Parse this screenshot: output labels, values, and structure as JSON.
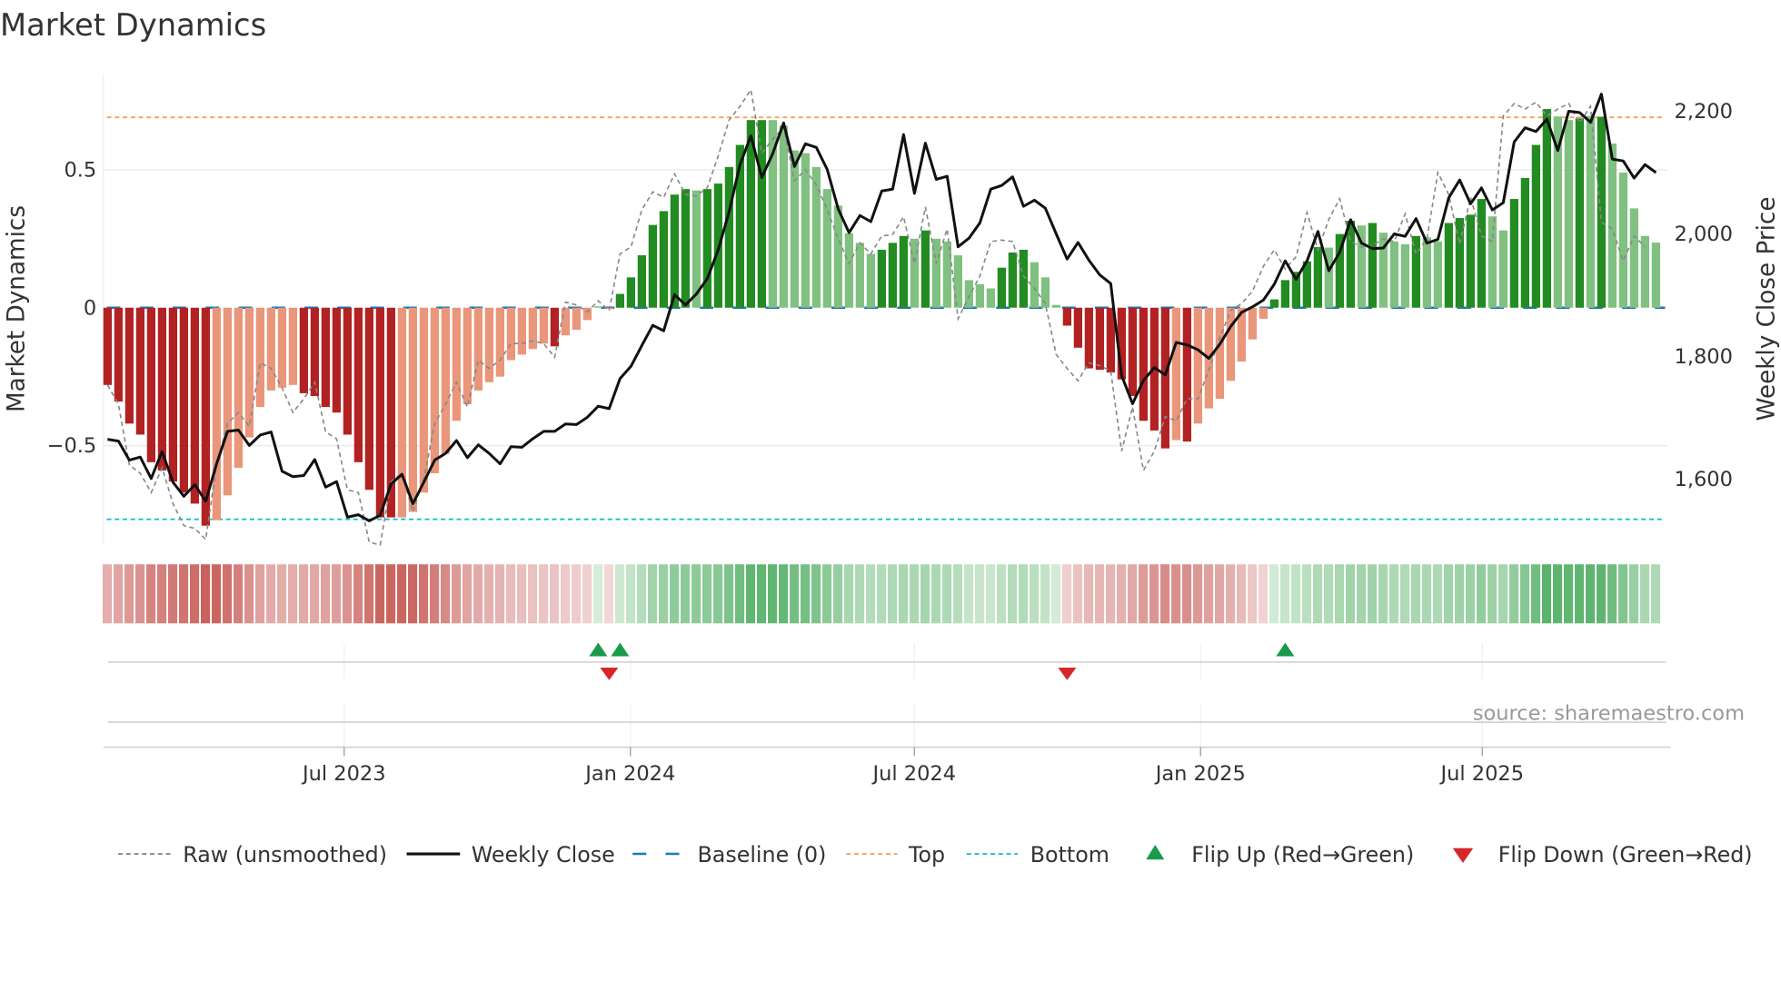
{
  "chart_data": {
    "type": "bar",
    "title": "Market Dynamics",
    "ylabel_left": "Market Dynamics",
    "ylabel_right": "Weekly Close Price",
    "source": "source: sharemaestro.com",
    "left_ticks": [
      {
        "value": 0.5,
        "label": "0.5"
      },
      {
        "value": 0,
        "label": "0"
      },
      {
        "value": -0.5,
        "label": "−0.5"
      }
    ],
    "right_ticks": [
      {
        "value": 2200,
        "label": "2,200"
      },
      {
        "value": 2000,
        "label": "2,000"
      },
      {
        "value": 1800,
        "label": "1,800"
      },
      {
        "value": 1600,
        "label": "1,600"
      }
    ],
    "x_ticks": [
      "Jul 2023",
      "Jan 2024",
      "Jul 2024",
      "Jan 2025",
      "Jul 2025"
    ],
    "ylim_left": [
      -0.8,
      0.8
    ],
    "top_level": 0.69,
    "bottom_level": -0.767,
    "baseline": 0,
    "grid": true,
    "legend_position": "bottom",
    "legend": [
      "Raw (unsmoothed)",
      "Weekly Close",
      "Baseline (0)",
      "Top",
      "Bottom",
      "Flip Up (Red→Green)",
      "Flip Down (Green→Red)"
    ],
    "colors": {
      "red_strong": "#b22222",
      "red_light": "#e9967a",
      "green_strong": "#228b22",
      "green_light": "#80c080",
      "raw": "#888888",
      "close": "#111111",
      "baseline": "#1f77b4",
      "top": "#f4a460",
      "bottom": "#17becf",
      "flip_up": "#1a9a4a",
      "flip_down": "#d62728"
    },
    "values": [
      -0.28,
      -0.34,
      -0.42,
      -0.46,
      -0.56,
      -0.59,
      -0.63,
      -0.67,
      -0.71,
      -0.79,
      -0.77,
      -0.68,
      -0.58,
      -0.47,
      -0.36,
      -0.3,
      -0.29,
      -0.28,
      -0.31,
      -0.32,
      -0.36,
      -0.38,
      -0.46,
      -0.56,
      -0.66,
      -0.76,
      -0.76,
      -0.76,
      -0.74,
      -0.67,
      -0.6,
      -0.53,
      -0.41,
      -0.35,
      -0.3,
      -0.27,
      -0.25,
      -0.19,
      -0.17,
      -0.15,
      -0.13,
      -0.14,
      -0.1,
      -0.08,
      -0.045,
      0.005,
      -0.005,
      0.05,
      0.11,
      0.19,
      0.3,
      0.35,
      0.41,
      0.43,
      0.425,
      0.43,
      0.45,
      0.51,
      0.59,
      0.68,
      0.68,
      0.68,
      0.66,
      0.57,
      0.56,
      0.51,
      0.43,
      0.37,
      0.27,
      0.235,
      0.195,
      0.21,
      0.235,
      0.26,
      0.25,
      0.28,
      0.25,
      0.24,
      0.19,
      0.1,
      0.085,
      0.07,
      0.145,
      0.2,
      0.21,
      0.165,
      0.11,
      0.01,
      -0.065,
      -0.145,
      -0.22,
      -0.225,
      -0.235,
      -0.26,
      -0.32,
      -0.41,
      -0.445,
      -0.51,
      -0.48,
      -0.485,
      -0.42,
      -0.365,
      -0.33,
      -0.265,
      -0.195,
      -0.115,
      -0.04,
      0.03,
      0.1,
      0.13,
      0.168,
      0.22,
      0.218,
      0.267,
      0.315,
      0.298,
      0.307,
      0.272,
      0.24,
      0.23,
      0.26,
      0.255,
      0.24,
      0.307,
      0.325,
      0.337,
      0.394,
      0.331,
      0.28,
      0.394,
      0.47,
      0.59,
      0.72,
      0.693,
      0.68,
      0.686,
      0.695,
      0.692,
      0.595,
      0.49,
      0.36,
      0.26,
      0.236
    ],
    "strong": [
      1,
      1,
      1,
      1,
      1,
      1,
      1,
      1,
      1,
      1,
      0,
      0,
      0,
      0,
      0,
      0,
      0,
      0,
      1,
      1,
      1,
      1,
      1,
      1,
      1,
      1,
      1,
      0,
      0,
      0,
      0,
      0,
      0,
      0,
      0,
      0,
      0,
      0,
      0,
      0,
      0,
      1,
      0,
      0,
      0,
      0,
      0,
      1,
      1,
      1,
      1,
      1,
      1,
      1,
      0,
      1,
      1,
      1,
      1,
      1,
      1,
      0,
      0,
      0,
      0,
      0,
      0,
      0,
      0,
      0,
      0,
      1,
      1,
      1,
      0,
      1,
      0,
      0,
      0,
      0,
      0,
      0,
      1,
      1,
      1,
      0,
      0,
      0,
      1,
      1,
      1,
      1,
      1,
      1,
      1,
      1,
      1,
      1,
      0,
      1,
      0,
      0,
      0,
      0,
      0,
      0,
      0,
      1,
      1,
      1,
      1,
      1,
      0,
      1,
      1,
      0,
      1,
      0,
      0,
      0,
      1,
      0,
      0,
      1,
      1,
      1,
      1,
      0,
      0,
      1,
      1,
      1,
      1,
      0,
      0,
      1,
      0,
      1,
      0,
      0,
      0,
      0,
      0
    ],
    "raw": [
      -0.28,
      -0.35,
      -0.57,
      -0.6,
      -0.67,
      -0.58,
      -0.71,
      -0.79,
      -0.8,
      -0.84,
      -0.57,
      -0.42,
      -0.38,
      -0.43,
      -0.2,
      -0.22,
      -0.29,
      -0.38,
      -0.33,
      -0.27,
      -0.45,
      -0.475,
      -0.66,
      -0.67,
      -0.85,
      -0.86,
      -0.63,
      -0.6,
      -0.74,
      -0.62,
      -0.42,
      -0.35,
      -0.27,
      -0.36,
      -0.19,
      -0.22,
      -0.19,
      -0.13,
      -0.13,
      -0.12,
      -0.13,
      -0.18,
      0.02,
      0.01,
      -0.015,
      0.025,
      -0.01,
      0.195,
      0.22,
      0.355,
      0.42,
      0.4,
      0.485,
      0.41,
      0.405,
      0.435,
      0.55,
      0.68,
      0.73,
      0.79,
      0.56,
      0.61,
      0.655,
      0.46,
      0.5,
      0.445,
      0.355,
      0.25,
      0.16,
      0.235,
      0.195,
      0.26,
      0.265,
      0.33,
      0.16,
      0.365,
      0.16,
      0.285,
      -0.04,
      0.04,
      0.115,
      0.24,
      0.245,
      0.24,
      0.115,
      0.07,
      0.015,
      -0.17,
      -0.22,
      -0.265,
      -0.2,
      -0.21,
      -0.23,
      -0.52,
      -0.36,
      -0.59,
      -0.52,
      -0.395,
      -0.41,
      -0.33,
      -0.33,
      -0.225,
      -0.11,
      -0.01,
      0.015,
      0.06,
      0.15,
      0.21,
      0.14,
      0.185,
      0.345,
      0.21,
      0.32,
      0.395,
      0.24,
      0.22,
      0.225,
      0.25,
      0.24,
      0.34,
      0.195,
      0.25,
      0.49,
      0.41,
      0.23,
      0.4,
      0.26,
      0.24,
      0.695,
      0.74,
      0.72,
      0.745,
      0.695,
      0.72,
      0.74,
      0.67,
      0.73,
      0.31,
      0.285,
      0.17,
      0.26,
      0.22
    ],
    "close": [
      1665,
      1662,
      1631,
      1636,
      1601,
      1645,
      1595,
      1572,
      1591,
      1564,
      1625,
      1678,
      1680,
      1655,
      1672,
      1677,
      1613,
      1604,
      1606,
      1632,
      1587,
      1596,
      1538,
      1542,
      1532,
      1541,
      1592,
      1608,
      1560,
      1595,
      1631,
      1642,
      1663,
      1635,
      1656,
      1642,
      1625,
      1653,
      1652,
      1666,
      1678,
      1678,
      1690,
      1689,
      1701,
      1719,
      1715,
      1764,
      1784,
      1818,
      1851,
      1842,
      1901,
      1884,
      1902,
      1927,
      1974,
      2036,
      2113,
      2160,
      2092,
      2131,
      2181,
      2110,
      2147,
      2141,
      2105,
      2041,
      2002,
      2030,
      2020,
      2070,
      2073,
      2162,
      2066,
      2148,
      2089,
      2094,
      1979,
      1993,
      2018,
      2073,
      2079,
      2093,
      2045,
      2055,
      2042,
      2000,
      1959,
      1986,
      1957,
      1933,
      1919,
      1769,
      1723,
      1761,
      1782,
      1770,
      1823,
      1819,
      1811,
      1797,
      1820,
      1849,
      1872,
      1881,
      1892,
      1918,
      1956,
      1926,
      1956,
      2004,
      1940,
      1970,
      2023,
      1985,
      1976,
      1977,
      2000,
      1996,
      2025,
      1985,
      1991,
      2059,
      2088,
      2049,
      2075,
      2039,
      2051,
      2150,
      2173,
      2167,
      2187,
      2136,
      2200,
      2198,
      2182,
      2228,
      2122,
      2119,
      2091,
      2113,
      2100
    ],
    "flip_up_weeks": [
      46,
      48,
      109
    ],
    "flip_down_weeks": [
      47,
      89
    ]
  }
}
